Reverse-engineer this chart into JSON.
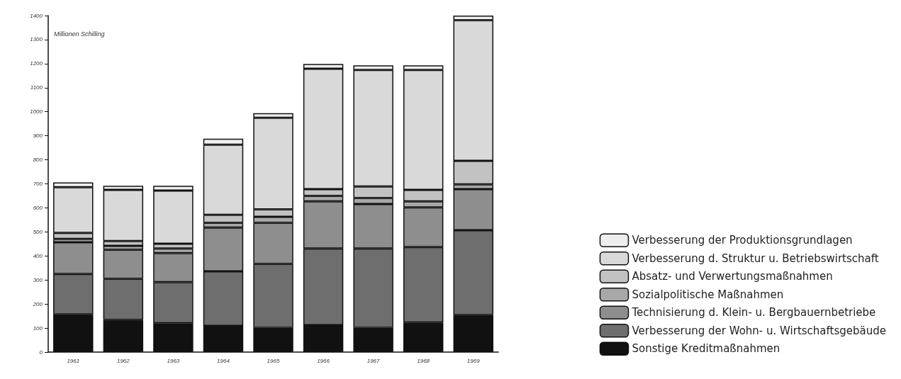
{
  "chart_data": {
    "type": "bar",
    "stacked": true,
    "ylabel": "Millionen Schilling",
    "categories": [
      "1961",
      "1962",
      "1963",
      "1964",
      "1965",
      "1966",
      "1967",
      "1968",
      "1969"
    ],
    "ylim": [
      0,
      1400
    ],
    "yticks": [
      0,
      100,
      200,
      300,
      400,
      500,
      600,
      700,
      800,
      900,
      1000,
      1100,
      1200,
      1300,
      1400
    ],
    "grid": false,
    "legend": "bottom right",
    "series": [
      {
        "name": "Sonstige Kreditmaßnahmen",
        "color": "#111111",
        "values": [
          157,
          134,
          120,
          109,
          101,
          112,
          101,
          123,
          154
        ]
      },
      {
        "name": "Verbesserung der Wohn- u. Wirtschaftsgebäude",
        "color": "#6e6e6e",
        "values": [
          168,
          171,
          171,
          227,
          266,
          319,
          330,
          314,
          353
        ]
      },
      {
        "name": "Technisierung d. Klein- u. Bergbauernbetriebe",
        "color": "#8e8e8e",
        "values": [
          132,
          121,
          121,
          182,
          171,
          196,
          185,
          165,
          171
        ]
      },
      {
        "name": "Sozialpolitische Maßnahmen",
        "color": "#a8a8a8",
        "values": [
          14,
          16,
          19,
          20,
          25,
          23,
          25,
          25,
          20
        ]
      },
      {
        "name": "Absatz- und Verwertungsmaßnahmen",
        "color": "#c2c2c2",
        "values": [
          25,
          20,
          20,
          33,
          31,
          28,
          48,
          48,
          98
        ]
      },
      {
        "name": "Verbesserung d. Struktur u. Betriebswirtschaft",
        "color": "#d9d9d9",
        "values": [
          190,
          213,
          221,
          292,
          381,
          501,
          485,
          499,
          585
        ]
      },
      {
        "name": "Verbesserung der Produktionsgrundlagen",
        "color": "#eeeeee",
        "values": [
          20,
          17,
          20,
          25,
          19,
          20,
          19,
          19,
          19
        ]
      }
    ]
  }
}
